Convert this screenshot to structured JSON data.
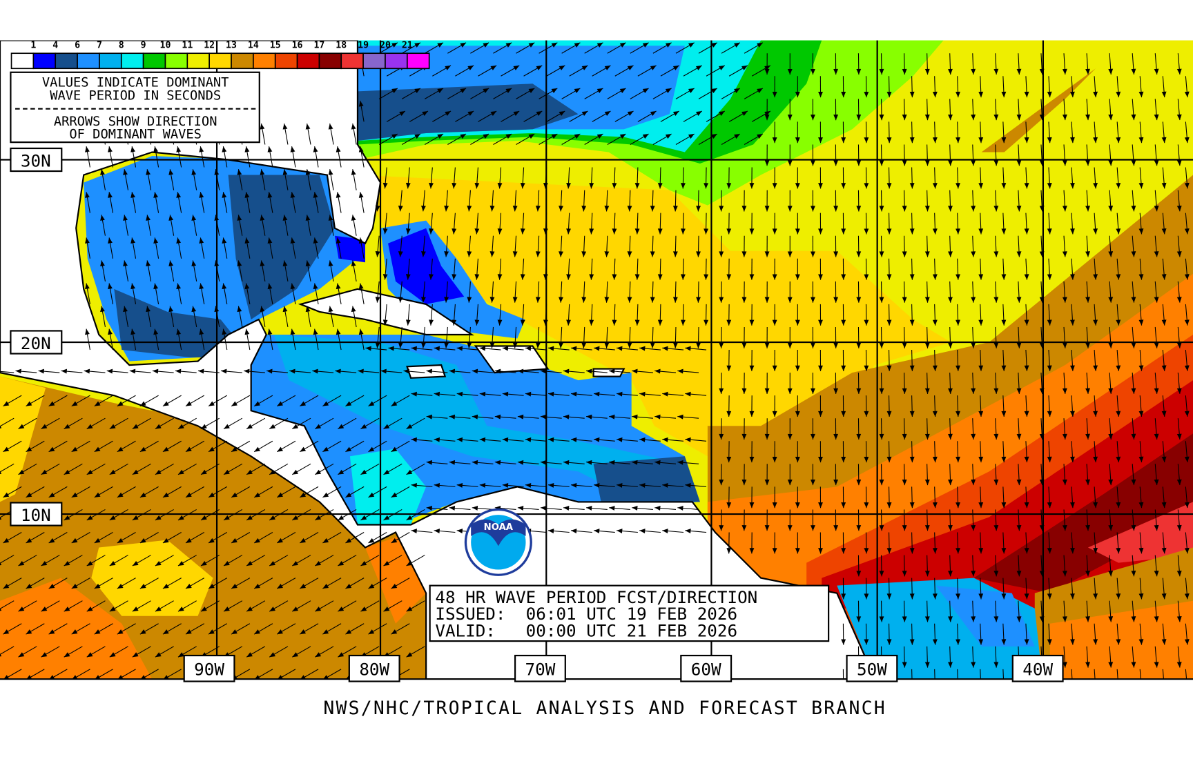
{
  "legend": {
    "labels": [
      "1",
      "4",
      "6",
      "7",
      "8",
      "9",
      "10",
      "11",
      "12",
      "13",
      "14",
      "15",
      "16",
      "17",
      "18",
      "19",
      "20",
      "21"
    ],
    "colors": [
      "#ffffff",
      "#0000ff",
      "#164f8c",
      "#1e90ff",
      "#00b0ee",
      "#00eeee",
      "#00c800",
      "#88ff00",
      "#eeee00",
      "#ffd700",
      "#cc8800",
      "#ff8000",
      "#ee4400",
      "#cc0000",
      "#880000",
      "#ee3333",
      "#8866cc",
      "#9933ee",
      "#ff00ff"
    ]
  },
  "info_box": {
    "line1": "VALUES INDICATE DOMINANT",
    "line2": "WAVE PERIOD IN SECONDS",
    "line3": "ARROWS SHOW DIRECTION",
    "line4": "OF DOMINANT WAVES"
  },
  "latitudes": [
    "30N",
    "20N",
    "10N"
  ],
  "longitudes": [
    "90W",
    "80W",
    "70W",
    "60W",
    "50W",
    "40W"
  ],
  "title_box": {
    "line1": "48 HR WAVE PERIOD FCST/DIRECTION",
    "line2": "ISSUED:  06:01 UTC 19 FEB 2026",
    "line3": "VALID:   00:00 UTC 21 FEB 2026"
  },
  "logo": {
    "text": "NOAA"
  },
  "footer": "NWS/NHC/TROPICAL ANALYSIS AND FORECAST BRANCH"
}
